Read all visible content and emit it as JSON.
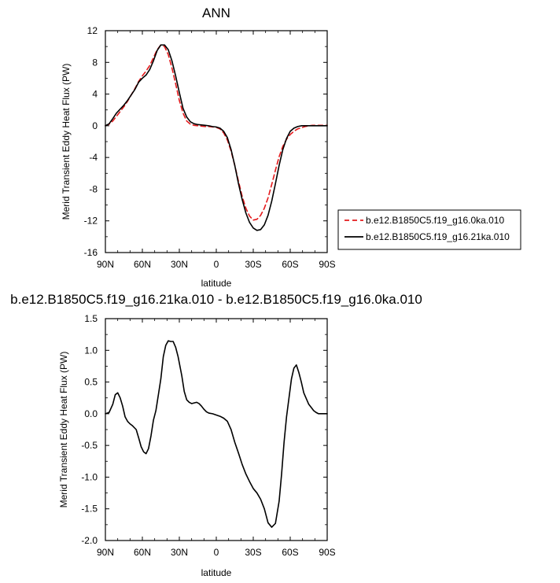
{
  "chart_data": [
    {
      "type": "line",
      "title": "ANN",
      "xlabel": "latitude",
      "ylabel": "Merid Transient Eddy Heat Flux (PW)",
      "xlim": [
        90,
        -90
      ],
      "ylim": [
        -16,
        12
      ],
      "xticks": [
        {
          "value": 90,
          "label": "90N"
        },
        {
          "value": 60,
          "label": "60N"
        },
        {
          "value": 30,
          "label": "30N"
        },
        {
          "value": 0,
          "label": "0"
        },
        {
          "value": -30,
          "label": "30S"
        },
        {
          "value": -60,
          "label": "60S"
        },
        {
          "value": -90,
          "label": "90S"
        }
      ],
      "yticks": [
        {
          "value": 12,
          "label": "12"
        },
        {
          "value": 8,
          "label": "8"
        },
        {
          "value": 4,
          "label": "4"
        },
        {
          "value": 0,
          "label": "0"
        },
        {
          "value": -4,
          "label": "-4"
        },
        {
          "value": -8,
          "label": "-8"
        },
        {
          "value": -12,
          "label": "-12"
        },
        {
          "value": -16,
          "label": "-16"
        }
      ],
      "legend_position": "right",
      "series": [
        {
          "name": "b.e12.B1850C5.f19_g16.0ka.010",
          "color": "#e41a1c",
          "dash": "dashed",
          "x": [
            90,
            87,
            84,
            81,
            78,
            75,
            72,
            69,
            66,
            63,
            60,
            57,
            54,
            51,
            48,
            45,
            42,
            39,
            36,
            33,
            30,
            27,
            24,
            21,
            18,
            15,
            12,
            9,
            6,
            3,
            0,
            -3,
            -6,
            -9,
            -12,
            -15,
            -18,
            -21,
            -24,
            -27,
            -30,
            -33,
            -36,
            -39,
            -42,
            -45,
            -48,
            -51,
            -54,
            -57,
            -60,
            -63,
            -66,
            -69,
            -72,
            -75,
            -78,
            -81,
            -84,
            -87,
            -90
          ],
          "y": [
            0,
            0.2,
            0.6,
            1.2,
            1.8,
            2.4,
            3.1,
            3.9,
            4.7,
            5.6,
            6.3,
            6.9,
            7.6,
            8.6,
            9.6,
            10.2,
            10.0,
            9.0,
            7.3,
            5.3,
            3.2,
            1.6,
            0.6,
            0.2,
            0.05,
            0,
            -0.05,
            -0.1,
            -0.1,
            -0.15,
            -0.2,
            -0.4,
            -0.9,
            -1.8,
            -3.2,
            -5.0,
            -7.0,
            -8.9,
            -10.4,
            -11.4,
            -11.9,
            -11.8,
            -11.3,
            -10.4,
            -9.1,
            -7.4,
            -5.6,
            -3.9,
            -2.6,
            -1.7,
            -1.1,
            -0.7,
            -0.4,
            -0.25,
            -0.1,
            0,
            0.05,
            0.05,
            0.05,
            0.05,
            0.05
          ]
        },
        {
          "name": "b.e12.B1850C5.f19_g16.21ka.010",
          "color": "#000000",
          "dash": "solid",
          "x": [
            90,
            87,
            84,
            81,
            78,
            75,
            72,
            69,
            66,
            63,
            60,
            57,
            54,
            51,
            48,
            45,
            42,
            39,
            36,
            33,
            30,
            27,
            24,
            21,
            18,
            15,
            12,
            9,
            6,
            3,
            0,
            -3,
            -6,
            -9,
            -12,
            -15,
            -18,
            -21,
            -24,
            -27,
            -30,
            -33,
            -36,
            -39,
            -42,
            -45,
            -48,
            -51,
            -54,
            -57,
            -60,
            -63,
            -66,
            -69,
            -72,
            -75,
            -78,
            -81,
            -84,
            -87,
            -90
          ],
          "y": [
            0,
            0.25,
            0.9,
            1.6,
            2.1,
            2.6,
            3.2,
            3.9,
            4.6,
            5.5,
            6.0,
            6.4,
            7.1,
            8.2,
            9.5,
            10.2,
            10.2,
            9.6,
            8.2,
            6.3,
            4.2,
            2.2,
            1.1,
            0.5,
            0.25,
            0.15,
            0.1,
            0.05,
            0,
            -0.1,
            -0.15,
            -0.3,
            -0.7,
            -1.5,
            -3.0,
            -5.0,
            -7.3,
            -9.3,
            -11.0,
            -12.2,
            -12.9,
            -13.2,
            -13.1,
            -12.5,
            -11.3,
            -9.5,
            -7.3,
            -5.0,
            -3.0,
            -1.6,
            -0.7,
            -0.3,
            -0.1,
            0,
            0,
            0,
            0,
            0,
            0,
            0,
            0
          ]
        }
      ]
    },
    {
      "type": "line",
      "title": "b.e12.B1850C5.f19_g16.21ka.010 - b.e12.B1850C5.f19_g16.0ka.010",
      "xlabel": "latitude",
      "ylabel": "Merid Transient Eddy Heat Flux (PW)",
      "xlim": [
        90,
        -90
      ],
      "ylim": [
        -2.0,
        1.5
      ],
      "xticks": [
        {
          "value": 90,
          "label": "90N"
        },
        {
          "value": 60,
          "label": "60N"
        },
        {
          "value": 30,
          "label": "30N"
        },
        {
          "value": 0,
          "label": "0"
        },
        {
          "value": -30,
          "label": "30S"
        },
        {
          "value": -60,
          "label": "60S"
        },
        {
          "value": -90,
          "label": "90S"
        }
      ],
      "yticks": [
        {
          "value": 1.5,
          "label": "1.5"
        },
        {
          "value": 1.0,
          "label": "1.0"
        },
        {
          "value": 0.5,
          "label": "0.5"
        },
        {
          "value": 0.0,
          "label": "0.0"
        },
        {
          "value": -0.5,
          "label": "-0.5"
        },
        {
          "value": -1.0,
          "label": "-1.0"
        },
        {
          "value": -1.5,
          "label": "-1.5"
        },
        {
          "value": -2.0,
          "label": "-2.0"
        }
      ],
      "series": [
        {
          "color": "#000000",
          "dash": "solid",
          "x": [
            90,
            87,
            84,
            82,
            80,
            78,
            76,
            74,
            72,
            70,
            68,
            65,
            63,
            61,
            59,
            57,
            55,
            53,
            51,
            49,
            47,
            45,
            43,
            41,
            39,
            37,
            35,
            33,
            31,
            28,
            26,
            24,
            22,
            20,
            18,
            16,
            14,
            12,
            10,
            8,
            6,
            3,
            0,
            -3,
            -6,
            -9,
            -12,
            -15,
            -18,
            -21,
            -24,
            -27,
            -30,
            -33,
            -36,
            -39,
            -42,
            -45,
            -48,
            -51,
            -53,
            -55,
            -57,
            -59,
            -61,
            -63,
            -65,
            -67,
            -69,
            -71,
            -73,
            -75,
            -77,
            -79,
            -81,
            -83,
            -85,
            -87,
            -90
          ],
          "y": [
            0,
            0.02,
            0.15,
            0.3,
            0.33,
            0.25,
            0.12,
            -0.05,
            -0.12,
            -0.16,
            -0.19,
            -0.25,
            -0.38,
            -0.52,
            -0.6,
            -0.63,
            -0.55,
            -0.35,
            -0.1,
            0.05,
            0.3,
            0.55,
            0.9,
            1.08,
            1.15,
            1.14,
            1.14,
            1.05,
            0.9,
            0.6,
            0.35,
            0.22,
            0.18,
            0.16,
            0.17,
            0.18,
            0.16,
            0.12,
            0.07,
            0.03,
            0.01,
            0,
            -0.02,
            -0.04,
            -0.07,
            -0.12,
            -0.25,
            -0.45,
            -0.62,
            -0.8,
            -0.95,
            -1.07,
            -1.18,
            -1.25,
            -1.35,
            -1.5,
            -1.72,
            -1.79,
            -1.73,
            -1.38,
            -0.95,
            -0.45,
            -0.05,
            0.25,
            0.55,
            0.72,
            0.77,
            0.65,
            0.5,
            0.33,
            0.24,
            0.15,
            0.1,
            0.05,
            0.02,
            0,
            0,
            0,
            0
          ]
        }
      ]
    }
  ]
}
